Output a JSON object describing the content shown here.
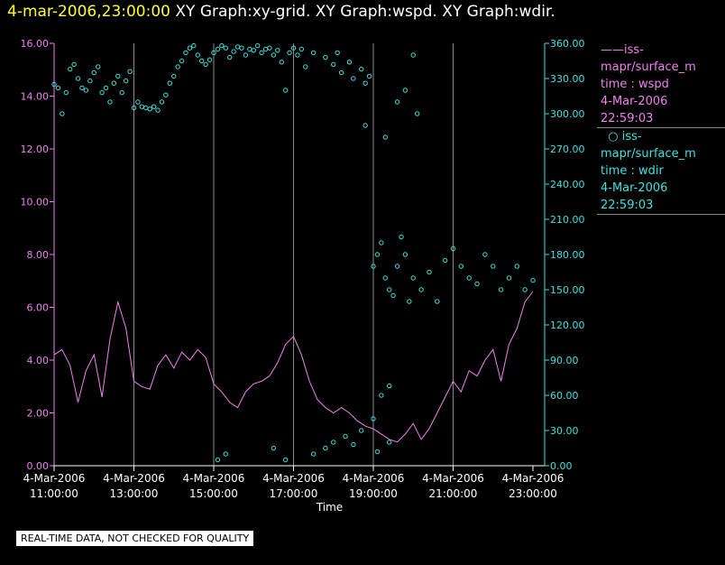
{
  "header": {
    "timestamp": "4-mar-2006,23:00:00",
    "graph_titles": "XY Graph:xy-grid.  XY Graph:wspd.  XY Graph:wdir."
  },
  "legend": {
    "series1": {
      "name_line": "iss-mapr/surface_m",
      "label": "time : wspd",
      "date": "4-Mar-2006",
      "time": "22:59:03",
      "color": "#ee82ee"
    },
    "series2": {
      "name_line": "iss-mapr/surface_m",
      "label": "time : wdir",
      "date": "4-Mar-2006",
      "time": "22:59:03",
      "color": "#40e0e0"
    }
  },
  "disclaimer": "REAL-TIME DATA, NOT CHECKED FOR QUALITY",
  "chart_data": {
    "type": "line",
    "xlabel": "Time",
    "x_ticks": [
      {
        "date": "4-Mar-2006",
        "time": "11:00:00"
      },
      {
        "date": "4-Mar-2006",
        "time": "13:00:00"
      },
      {
        "date": "4-Mar-2006",
        "time": "15:00:00"
      },
      {
        "date": "4-Mar-2006",
        "time": "17:00:00"
      },
      {
        "date": "4-Mar-2006",
        "time": "19:00:00"
      },
      {
        "date": "4-Mar-2006",
        "time": "21:00:00"
      },
      {
        "date": "4-Mar-2006",
        "time": "23:00:00"
      }
    ],
    "xlim": [
      "4-Mar-2006 11:00:00",
      "4-Mar-2006 23:00:00"
    ],
    "y_left": {
      "ylim": [
        0,
        16
      ],
      "ticks": [
        "0.00",
        "2.00",
        "4.00",
        "6.00",
        "8.00",
        "10.00",
        "12.00",
        "14.00",
        "16.00"
      ],
      "color": "#ee82ee"
    },
    "y_right": {
      "ylim": [
        0,
        360
      ],
      "ticks": [
        "0.00",
        "30.00",
        "60.00",
        "90.00",
        "120.00",
        "150.00",
        "180.00",
        "210.00",
        "240.00",
        "270.00",
        "300.00",
        "330.00",
        "360.00"
      ],
      "color": "#40e0e0"
    },
    "grid": "vertical",
    "series": [
      {
        "label": "time : wspd",
        "style": "line",
        "axis": "left",
        "color": "#ee82ee",
        "hours": [
          11.0,
          11.2,
          11.4,
          11.6,
          11.8,
          12.0,
          12.2,
          12.4,
          12.6,
          12.8,
          13.0,
          13.2,
          13.4,
          13.6,
          13.8,
          14.0,
          14.2,
          14.4,
          14.6,
          14.8,
          15.0,
          15.2,
          15.4,
          15.6,
          15.8,
          16.0,
          16.2,
          16.4,
          16.6,
          16.8,
          17.0,
          17.2,
          17.4,
          17.6,
          17.8,
          18.0,
          18.2,
          18.4,
          18.6,
          18.8,
          19.0,
          19.2,
          19.4,
          19.6,
          19.8,
          20.0,
          20.2,
          20.4,
          20.6,
          20.8,
          21.0,
          21.2,
          21.4,
          21.6,
          21.8,
          22.0,
          22.2,
          22.4,
          22.6,
          22.8,
          23.0
        ],
        "values": [
          4.2,
          4.4,
          3.8,
          2.4,
          3.6,
          4.2,
          2.6,
          4.8,
          6.2,
          5.2,
          3.2,
          3.0,
          2.9,
          3.8,
          4.2,
          3.7,
          4.3,
          4.0,
          4.4,
          4.1,
          3.1,
          2.8,
          2.4,
          2.2,
          2.8,
          3.1,
          3.2,
          3.4,
          3.9,
          4.6,
          4.9,
          4.2,
          3.2,
          2.5,
          2.2,
          2.0,
          2.2,
          2.0,
          1.7,
          1.5,
          1.4,
          1.2,
          1.0,
          0.9,
          1.2,
          1.6,
          1.0,
          1.4,
          2.0,
          2.6,
          3.2,
          2.8,
          3.6,
          3.4,
          4.0,
          4.4,
          3.2,
          4.6,
          5.2,
          6.2,
          6.6
        ]
      },
      {
        "label": "time : wdir",
        "style": "scatter",
        "axis": "right",
        "color": "#40e0e0",
        "hours": [
          11.0,
          11.1,
          11.2,
          11.3,
          11.4,
          11.5,
          11.6,
          11.7,
          11.8,
          11.9,
          12.0,
          12.1,
          12.2,
          12.3,
          12.4,
          12.5,
          12.6,
          12.7,
          12.8,
          12.9,
          13.0,
          13.1,
          13.2,
          13.3,
          13.4,
          13.5,
          13.6,
          13.7,
          13.8,
          13.9,
          14.0,
          14.1,
          14.2,
          14.3,
          14.4,
          14.5,
          14.6,
          14.7,
          14.8,
          14.9,
          15.0,
          15.1,
          15.2,
          15.3,
          15.4,
          15.5,
          15.6,
          15.7,
          15.8,
          15.9,
          16.0,
          16.1,
          16.2,
          16.3,
          16.4,
          16.5,
          16.6,
          16.7,
          16.8,
          16.9,
          17.0,
          17.1,
          17.2,
          17.3,
          17.5,
          17.8,
          18.0,
          18.1,
          18.2,
          18.4,
          18.5,
          18.7,
          18.8,
          18.9,
          19.0,
          19.1,
          19.2,
          19.3,
          19.4,
          19.5,
          19.6,
          19.7,
          19.8,
          19.9,
          20.0,
          20.2,
          20.4,
          20.6,
          20.8,
          21.0,
          21.2,
          21.4,
          21.6,
          21.8,
          22.0,
          22.2,
          22.4,
          22.6,
          22.8,
          23.0,
          15.1,
          15.3,
          16.5,
          16.8,
          17.5,
          17.8,
          18.0,
          18.3,
          18.5,
          18.7,
          19.0,
          19.2,
          19.4,
          19.1,
          19.4,
          19.8,
          20.1,
          18.8,
          19.3,
          19.6,
          20.0
        ],
        "values": [
          325,
          322,
          300,
          318,
          338,
          342,
          330,
          322,
          320,
          328,
          335,
          340,
          318,
          322,
          310,
          326,
          332,
          318,
          328,
          336,
          305,
          310,
          306,
          305,
          304,
          306,
          303,
          310,
          316,
          326,
          332,
          340,
          345,
          352,
          356,
          358,
          350,
          345,
          342,
          346,
          352,
          355,
          358,
          356,
          348,
          353,
          357,
          356,
          350,
          355,
          354,
          358,
          352,
          355,
          356,
          350,
          354,
          344,
          320,
          352,
          356,
          350,
          355,
          340,
          352,
          348,
          342,
          352,
          335,
          344,
          330,
          338,
          326,
          332,
          170,
          180,
          190,
          160,
          150,
          145,
          170,
          195,
          180,
          140,
          160,
          150,
          165,
          140,
          175,
          185,
          170,
          160,
          155,
          180,
          170,
          150,
          160,
          170,
          150,
          158,
          5,
          10,
          15,
          5,
          10,
          15,
          20,
          25,
          18,
          30,
          40,
          60,
          68,
          12,
          20,
          320,
          300,
          290,
          280,
          310,
          350
        ]
      }
    ]
  }
}
